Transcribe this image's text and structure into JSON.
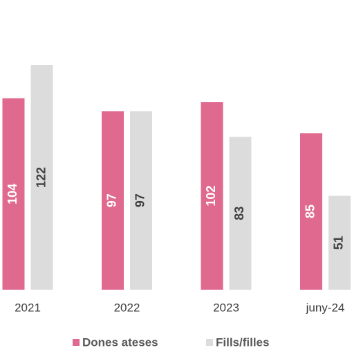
{
  "chart_data": {
    "type": "bar",
    "categories": [
      "2021",
      "2022",
      "2023",
      "juny-24"
    ],
    "series": [
      {
        "name": "Dones ateses",
        "color": "#e0698f",
        "values": [
          104,
          97,
          102,
          85
        ]
      },
      {
        "name": "Fills/filles",
        "color": "#dcdcdc",
        "values": [
          122,
          97,
          83,
          51
        ]
      }
    ],
    "legend": "bottom"
  }
}
